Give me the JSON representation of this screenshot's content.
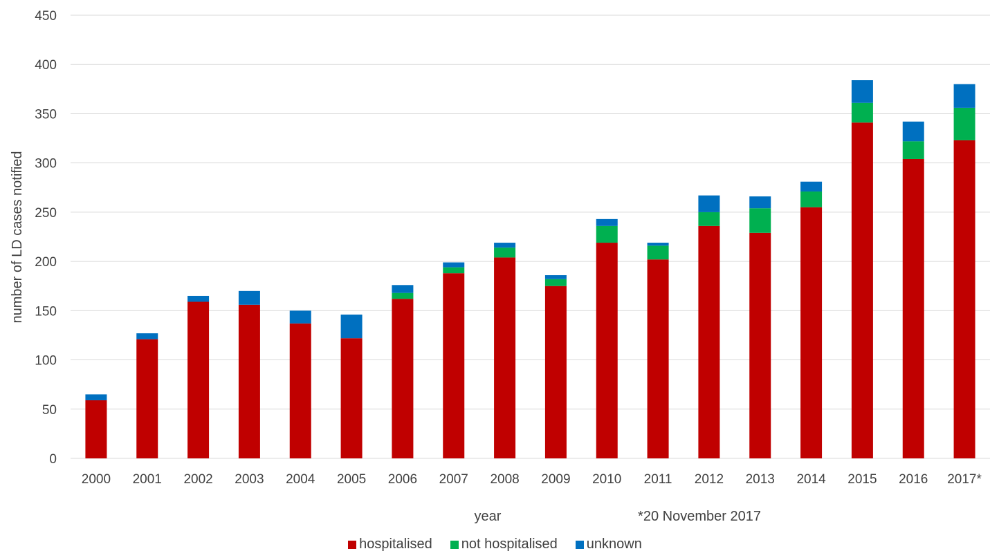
{
  "chart_data": {
    "type": "bar",
    "stacked": true,
    "categories": [
      "2000",
      "2001",
      "2002",
      "2003",
      "2004",
      "2005",
      "2006",
      "2007",
      "2008",
      "2009",
      "2010",
      "2011",
      "2012",
      "2013",
      "2014",
      "2015",
      "2016",
      "2017*"
    ],
    "series": [
      {
        "name": "hospitalised",
        "color": "#c00000",
        "values": [
          59,
          121,
          159,
          156,
          137,
          122,
          162,
          188,
          204,
          175,
          219,
          202,
          236,
          229,
          255,
          341,
          304,
          323
        ]
      },
      {
        "name": "not hospitalised",
        "color": "#00b050",
        "values": [
          0,
          0,
          0,
          0,
          0,
          0,
          6,
          6,
          10,
          7,
          17,
          14,
          14,
          25,
          16,
          20,
          18,
          33
        ]
      },
      {
        "name": "unknown",
        "color": "#0070c0",
        "values": [
          6,
          6,
          6,
          14,
          13,
          24,
          8,
          5,
          5,
          4,
          7,
          3,
          17,
          12,
          10,
          23,
          20,
          24
        ]
      }
    ],
    "xlabel": "year",
    "ylabel": "number of LD cases notified",
    "note": "*20 November 2017",
    "ylim": [
      0,
      450
    ],
    "yticks": [
      0,
      50,
      100,
      150,
      200,
      250,
      300,
      350,
      400,
      450
    ],
    "grid": true,
    "legend": "bottom"
  }
}
